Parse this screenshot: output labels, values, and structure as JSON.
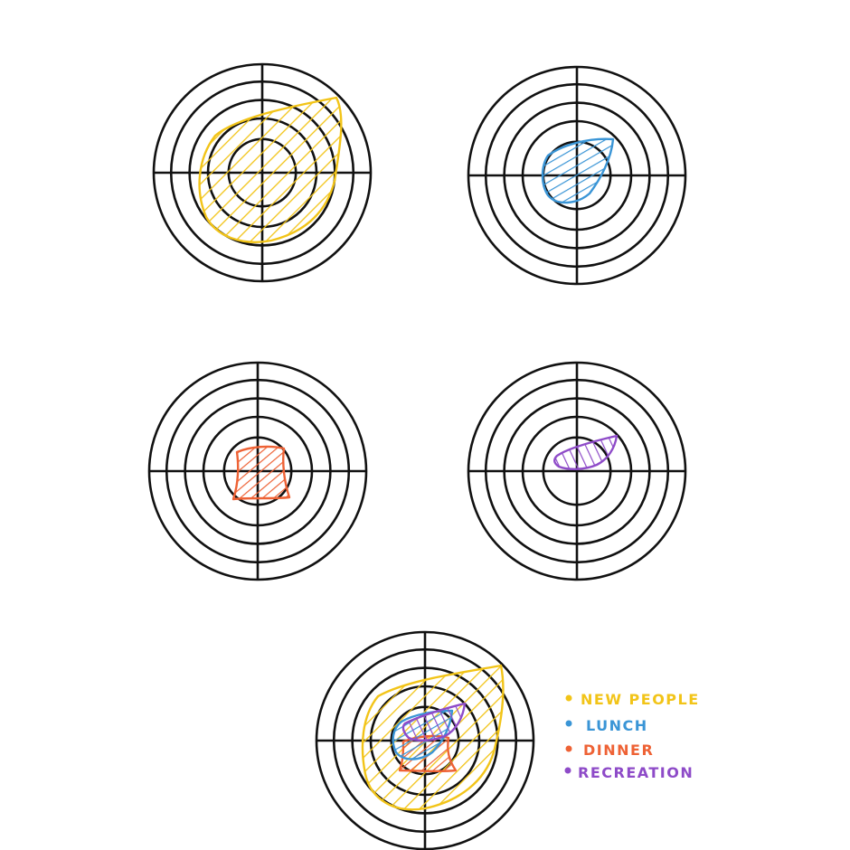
{
  "title": "",
  "colors": {
    "new_people": "#F2C418",
    "lunch": "#3A95D6",
    "dinner": "#EE6235",
    "recreation": "#8E4BC8",
    "ring": "#111111"
  },
  "legend": [
    {
      "key": "new_people",
      "label": "NEW PEOPLE",
      "color": "#F2C418",
      "icon": "dot-icon"
    },
    {
      "key": "lunch",
      "label": "LUNCH",
      "color": "#3A95D6",
      "icon": "dot-icon"
    },
    {
      "key": "dinner",
      "label": "DINNER",
      "color": "#EE6235",
      "icon": "dot-icon"
    },
    {
      "key": "recreation",
      "label": "RECREATION",
      "color": "#8E4BC8",
      "icon": "dot-icon"
    }
  ],
  "targets": [
    {
      "name": "target-new-people",
      "series": [
        "new_people"
      ]
    },
    {
      "name": "target-lunch",
      "series": [
        "lunch"
      ]
    },
    {
      "name": "target-dinner",
      "series": [
        "dinner"
      ]
    },
    {
      "name": "target-recreation",
      "series": [
        "recreation"
      ]
    },
    {
      "name": "target-combined",
      "series": [
        "new_people",
        "lunch",
        "dinner",
        "recreation"
      ]
    }
  ]
}
